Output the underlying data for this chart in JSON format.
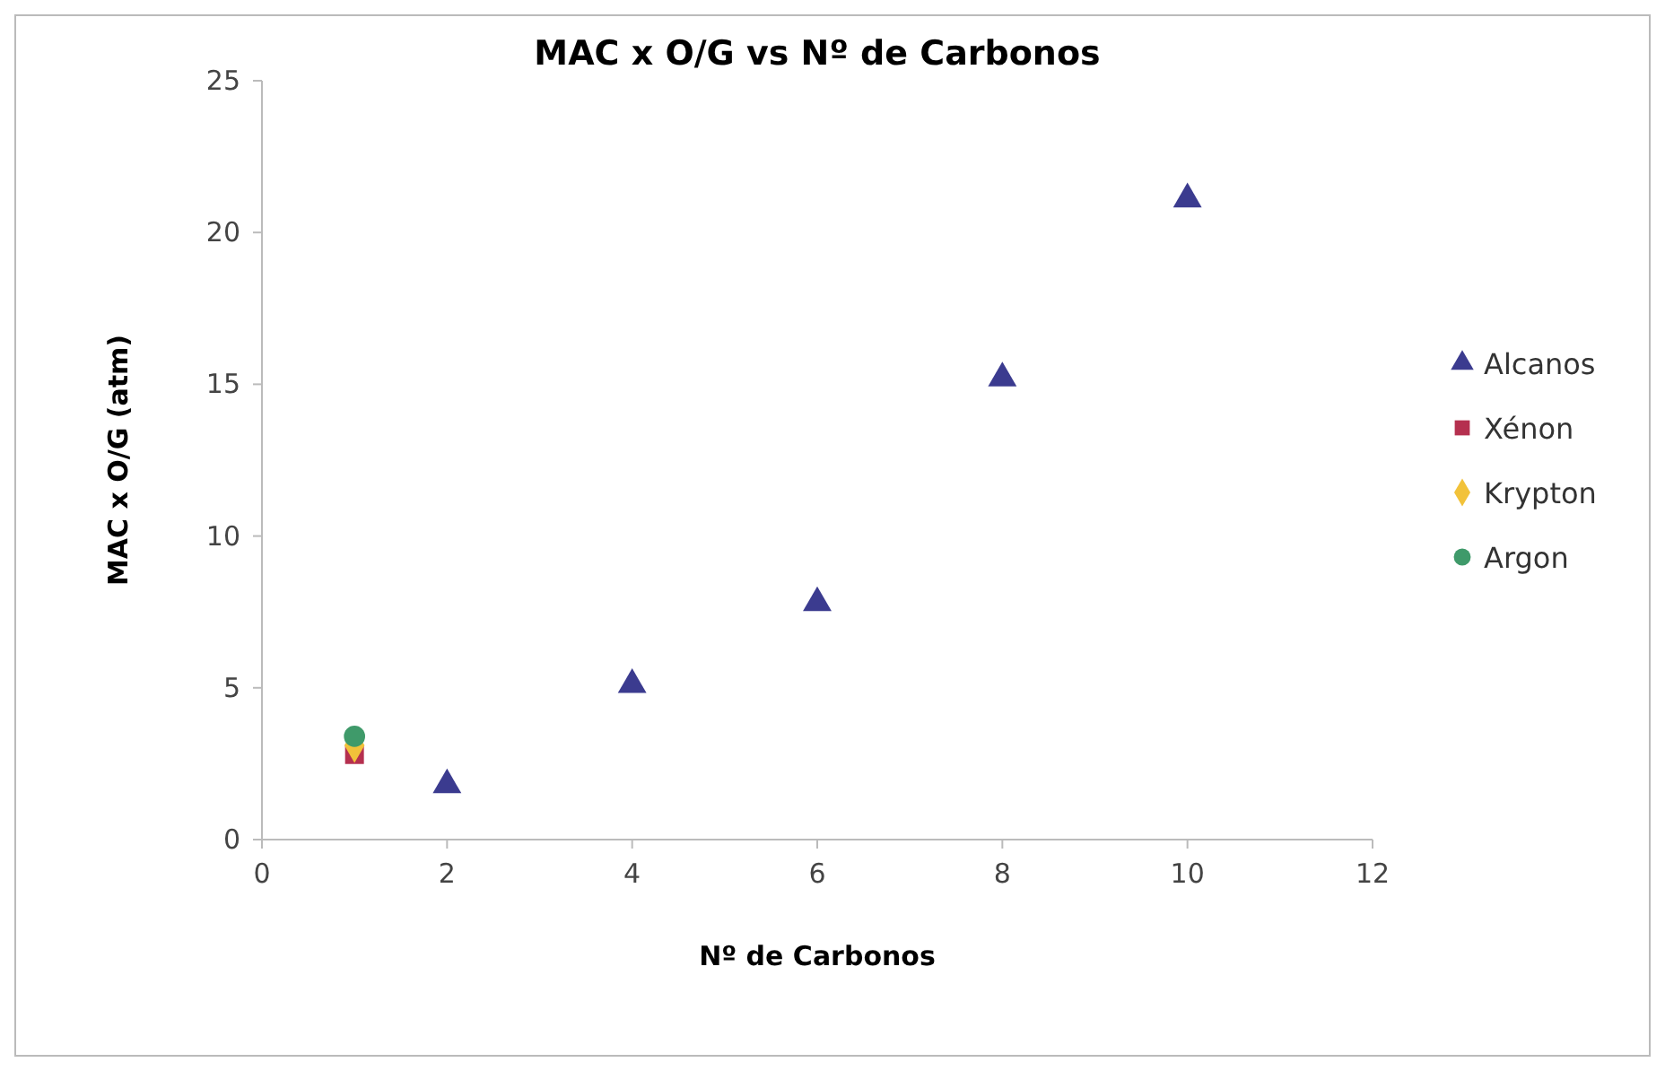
{
  "chart_data": {
    "type": "scatter",
    "title": "MAC x O/G vs Nº de Carbonos",
    "xlabel": "Nº de Carbonos",
    "ylabel": "MAC x O/G (atm)",
    "xlim": [
      0,
      12
    ],
    "xticks": [
      0,
      2,
      4,
      6,
      8,
      10,
      12
    ],
    "ylim": [
      0,
      25
    ],
    "yticks": [
      0,
      5,
      10,
      15,
      20,
      25
    ],
    "grid": false,
    "legend": "right",
    "series": [
      {
        "name": "Alcanos",
        "color": "#3b3b8f",
        "marker": "triangle",
        "x": [
          2,
          4,
          6,
          8,
          10
        ],
        "values": [
          1.8,
          5.1,
          7.8,
          15.2,
          21.1
        ]
      },
      {
        "name": "Xénon",
        "color": "#b5304f",
        "marker": "square",
        "x": [
          1
        ],
        "values": [
          2.8
        ]
      },
      {
        "name": "Krypton",
        "color": "#f2c23a",
        "marker": "diamond",
        "x": [
          1
        ],
        "values": [
          3.1
        ]
      },
      {
        "name": "Argon",
        "color": "#3f9a6a",
        "marker": "circle",
        "x": [
          1
        ],
        "values": [
          3.4
        ]
      }
    ]
  }
}
